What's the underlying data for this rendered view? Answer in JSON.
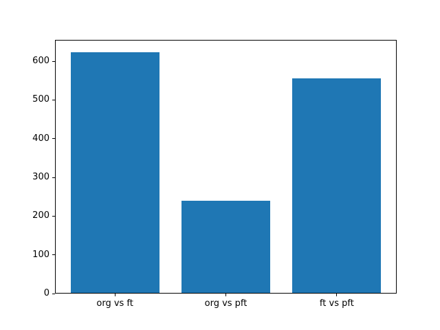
{
  "chart_data": {
    "type": "bar",
    "categories": [
      "org vs ft",
      "org vs pft",
      "ft vs pft"
    ],
    "values": [
      624,
      240,
      555
    ],
    "title": "",
    "xlabel": "",
    "ylabel": "",
    "yticks": [
      0,
      100,
      200,
      300,
      400,
      500,
      600
    ],
    "ylim": [
      0,
      655.2
    ],
    "xlim": [
      -0.54,
      2.54
    ],
    "bar_width": 0.8,
    "grid": false,
    "legend": false,
    "bar_color": "#1f77b4"
  },
  "colors": {
    "background": "#ffffff",
    "axes_edge": "#000000",
    "tick_text": "#000000"
  }
}
